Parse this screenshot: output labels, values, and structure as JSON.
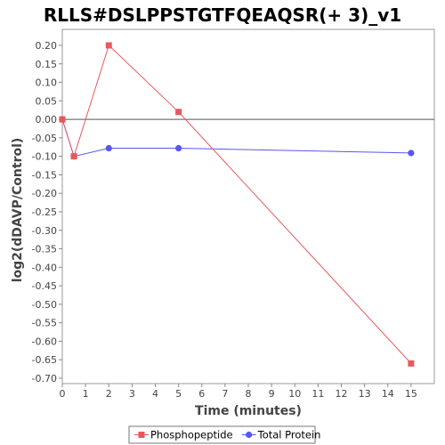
{
  "chart_data": {
    "type": "line",
    "title": "RLLS#DSLPPSTGTFQEAQSR(+ 3)_v1",
    "xlabel": "Time (minutes)",
    "ylabel": "log2(dDAVP/Control)",
    "xlim": [
      0,
      16
    ],
    "ylim": [
      -0.7,
      0.25
    ],
    "x_ticks": [
      0,
      1,
      2,
      3,
      4,
      5,
      6,
      7,
      8,
      9,
      10,
      11,
      12,
      13,
      14,
      15
    ],
    "y_ticks": [
      0.2,
      0.15,
      0.1,
      0.05,
      0.0,
      -0.05,
      -0.1,
      -0.15,
      -0.2,
      -0.25,
      -0.3,
      -0.35,
      -0.4,
      -0.45,
      -0.5,
      -0.55,
      -0.6,
      -0.65,
      -0.7
    ],
    "y_tick_labels": [
      "0.20",
      "0.15",
      "0.10",
      "0.05",
      "0.00",
      "-0.05",
      "-0.10",
      "-0.15",
      "-0.20",
      "-0.25",
      "-0.30",
      "-0.35",
      "-0.40",
      "-0.45",
      "-0.50",
      "-0.55",
      "-0.60",
      "-0.65",
      "-0.70"
    ],
    "zero_line": true,
    "grid": false,
    "legend_position": "bottom",
    "series": [
      {
        "name": "Phosphopeptide",
        "color": "#e8585a",
        "marker": "square",
        "x": [
          0,
          0.5,
          2,
          5,
          15
        ],
        "y": [
          0.0,
          -0.1,
          0.2,
          0.02,
          -0.66
        ]
      },
      {
        "name": "Total Protein",
        "color": "#5757f0",
        "marker": "circle",
        "x": [
          0,
          0.5,
          2,
          5,
          15
        ],
        "y": [
          0.0,
          -0.1,
          -0.078,
          -0.078,
          -0.091
        ]
      }
    ]
  }
}
